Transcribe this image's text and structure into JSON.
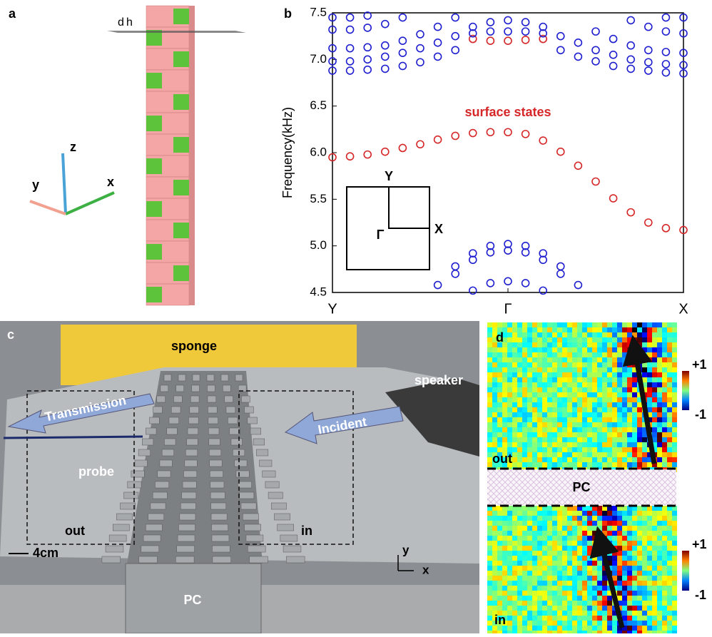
{
  "panel_a": {
    "label": "a",
    "dimension_labels": [
      "d",
      "h"
    ],
    "axes": [
      "z",
      "y",
      "x"
    ]
  },
  "chart_data": {
    "type": "scatter",
    "panel_label": "b",
    "ylabel": "Frequency(kHz)",
    "annotation": "surface states",
    "inset_labels": [
      "Y",
      "Γ",
      "X"
    ],
    "xlim": [
      0,
      2
    ],
    "xticks": [
      {
        "value": 0,
        "label": "Y"
      },
      {
        "value": 1,
        "label": "Γ"
      },
      {
        "value": 2,
        "label": "X"
      }
    ],
    "ylim": [
      4.5,
      7.5
    ],
    "yticks": [
      4.5,
      {
        "value": 5,
        "label": "5.0"
      },
      5.5,
      {
        "value": 6,
        "label": "6.0"
      },
      6.5,
      {
        "value": 7,
        "label": "7.0"
      },
      7.5
    ],
    "x": [
      0,
      0.1,
      0.2,
      0.3,
      0.4,
      0.5,
      0.6,
      0.7,
      0.8,
      0.9,
      1,
      1.1,
      1.2,
      1.3,
      1.4,
      1.5,
      1.6,
      1.7,
      1.8,
      1.9,
      2
    ],
    "series": [
      {
        "color": "#d62728",
        "values": [
          5.95,
          5.96,
          5.98,
          6.01,
          6.05,
          6.09,
          6.14,
          6.18,
          6.21,
          6.22,
          6.22,
          6.2,
          6.13,
          6.01,
          5.86,
          5.69,
          5.51,
          5.36,
          5.25,
          5.19,
          5.17
        ]
      },
      {
        "color": "#d62728",
        "values": [
          null,
          null,
          null,
          null,
          null,
          null,
          null,
          null,
          7.22,
          7.2,
          7.2,
          7.21,
          7.22,
          null,
          null,
          null,
          null,
          null,
          null,
          null,
          null
        ]
      },
      {
        "color": "#1f1fd0",
        "values": [
          null,
          null,
          null,
          null,
          null,
          null,
          4.58,
          4.78,
          4.92,
          5,
          5.02,
          5,
          4.92,
          4.78,
          4.58,
          null,
          null,
          null,
          null,
          null,
          null
        ]
      },
      {
        "color": "#1f1fd0",
        "values": [
          null,
          null,
          null,
          null,
          null,
          null,
          null,
          4.7,
          4.85,
          4.93,
          4.95,
          4.93,
          4.85,
          4.7,
          null,
          null,
          null,
          null,
          null,
          null,
          null
        ]
      },
      {
        "color": "#1f1fd0",
        "values": [
          null,
          null,
          null,
          null,
          null,
          null,
          null,
          null,
          4.52,
          4.6,
          4.62,
          4.6,
          4.52,
          null,
          null,
          null,
          null,
          null,
          null,
          null,
          null
        ]
      },
      {
        "color": "#1f1fd0",
        "values": [
          6.88,
          6.88,
          6.89,
          6.9,
          6.93,
          6.97,
          7.03,
          7.1,
          7.28,
          7.3,
          7.3,
          7.3,
          7.28,
          7.1,
          7.03,
          6.98,
          6.93,
          6.9,
          6.88,
          6.86,
          6.85
        ]
      },
      {
        "color": "#1f1fd0",
        "values": [
          6.98,
          6.98,
          7,
          7.03,
          7.07,
          7.12,
          7.18,
          7.25,
          7.35,
          7.4,
          7.42,
          7.4,
          7.35,
          7.25,
          7.18,
          7.1,
          7.05,
          7,
          6.97,
          6.95,
          6.94
        ]
      },
      {
        "color": "#1f1fd0",
        "values": [
          7.12,
          7.12,
          7.13,
          7.15,
          7.2,
          7.27,
          7.35,
          7.45,
          null,
          null,
          null,
          null,
          null,
          null,
          null,
          7.3,
          7.22,
          7.15,
          7.1,
          7.08,
          7.07
        ]
      },
      {
        "color": "#1f1fd0",
        "values": [
          7.32,
          7.32,
          7.34,
          7.38,
          7.45,
          null,
          null,
          null,
          null,
          null,
          null,
          null,
          null,
          null,
          null,
          null,
          null,
          7.42,
          7.35,
          7.3,
          7.28
        ]
      },
      {
        "color": "#1f1fd0",
        "values": [
          7.45,
          7.45,
          7.47,
          null,
          null,
          null,
          null,
          null,
          null,
          null,
          null,
          null,
          null,
          null,
          null,
          null,
          null,
          null,
          null,
          7.45,
          7.45
        ]
      }
    ]
  },
  "panel_c": {
    "label": "c",
    "sponge": "sponge",
    "speaker": "speaker",
    "transmission": "Transmission",
    "incident": "Incident",
    "probe": "probe",
    "out": "out",
    "in": "in",
    "scale": "4cm",
    "pc": "PC",
    "axis_y": "y",
    "axis_x": "x"
  },
  "panel_d": {
    "label": "d",
    "colorbar_top": [
      "+1",
      "-1"
    ],
    "out": "out",
    "pc": "PC",
    "in": "in",
    "colorbar_bottom": [
      "+1",
      "-1"
    ]
  }
}
